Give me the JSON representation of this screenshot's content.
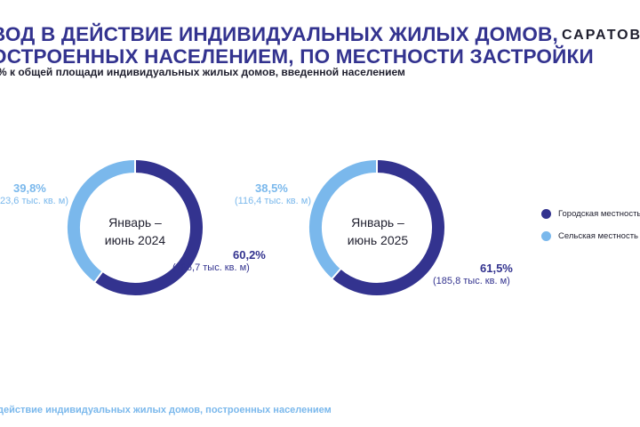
{
  "header": {
    "title_line1": "ВОД В ДЕЙСТВИЕ ИНДИВИДУАЛЬНЫХ ЖИЛЫХ ДОМОВ,",
    "title_line2": "ОСТРОЕННЫХ НАСЕЛЕНИЕМ, ПО МЕСТНОСТИ ЗАСТРОЙКИ",
    "subtitle": "% к общей площади индивидуальных жилых домов, введенной населением",
    "brand": "САРАТОВС"
  },
  "footer": {
    "text": "действие индивидуальных жилых домов, построенных населением"
  },
  "colors": {
    "urban": "#33338f",
    "rural": "#7ab8ec"
  },
  "chart_data": [
    {
      "type": "pie",
      "title": "Январь – июнь 2024",
      "center_line1": "Январь –",
      "center_line2": "июнь 2024",
      "categories": [
        "Городская местность",
        "Сельская местность"
      ],
      "values": [
        60.2,
        39.8
      ],
      "labels": {
        "urban_pct": "60,2%",
        "urban_abs": "(186,7 тыс. кв. м)",
        "rural_pct": "39,8%",
        "rural_abs": "23,6 тыс. кв. м)"
      }
    },
    {
      "type": "pie",
      "title": "Январь – июнь 2025",
      "center_line1": "Январь –",
      "center_line2": "июнь 2025",
      "categories": [
        "Городская местность",
        "Сельская местность"
      ],
      "values": [
        61.5,
        38.5
      ],
      "labels": {
        "urban_pct": "61,5%",
        "urban_abs": "(185,8 тыс. кв. м)",
        "rural_pct": "38,5%",
        "rural_abs": "(116,4 тыс. кв. м)"
      }
    }
  ],
  "legend": {
    "items": [
      {
        "label": "Городская местность"
      },
      {
        "label": "Сельская местность"
      }
    ]
  }
}
